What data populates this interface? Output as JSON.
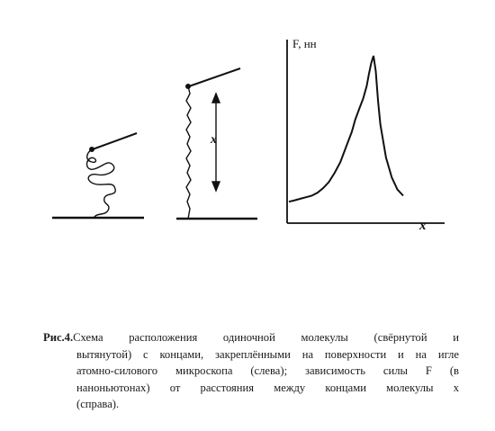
{
  "figure": {
    "y_axis_label": "F, нн",
    "x_axis_label": "x",
    "extension_label": "x"
  },
  "caption": {
    "label": "Рис.4.",
    "lines": [
      "Схема расположения одиночной молекулы (свёрнутой и",
      "вытянутой) с концами, закреплёнными на поверхности и на игле",
      "атомно-силового микроскопа (слева); зависимость силы F (в",
      "наноньютонах) от расстояния между концами молекулы x",
      "(справа)."
    ]
  },
  "chart_data": {
    "type": "line",
    "title": "",
    "xlabel": "x",
    "ylabel": "F, нн",
    "grid": false,
    "legend": "none",
    "series": [
      {
        "x": [
          0,
          0.05,
          0.1,
          0.15,
          0.2,
          0.25,
          0.3,
          0.35,
          0.4,
          0.45,
          0.5,
          0.55,
          0.58,
          0.62,
          0.65,
          0.68,
          0.7,
          0.72,
          0.74,
          0.76,
          0.78,
          0.8,
          0.85,
          0.9,
          0.95,
          1.0
        ],
        "y": [
          0.04,
          0.05,
          0.06,
          0.07,
          0.08,
          0.1,
          0.13,
          0.17,
          0.23,
          0.3,
          0.4,
          0.5,
          0.58,
          0.66,
          0.72,
          0.8,
          0.88,
          0.95,
          1.0,
          0.9,
          0.7,
          0.55,
          0.33,
          0.2,
          0.12,
          0.08
        ]
      }
    ]
  }
}
